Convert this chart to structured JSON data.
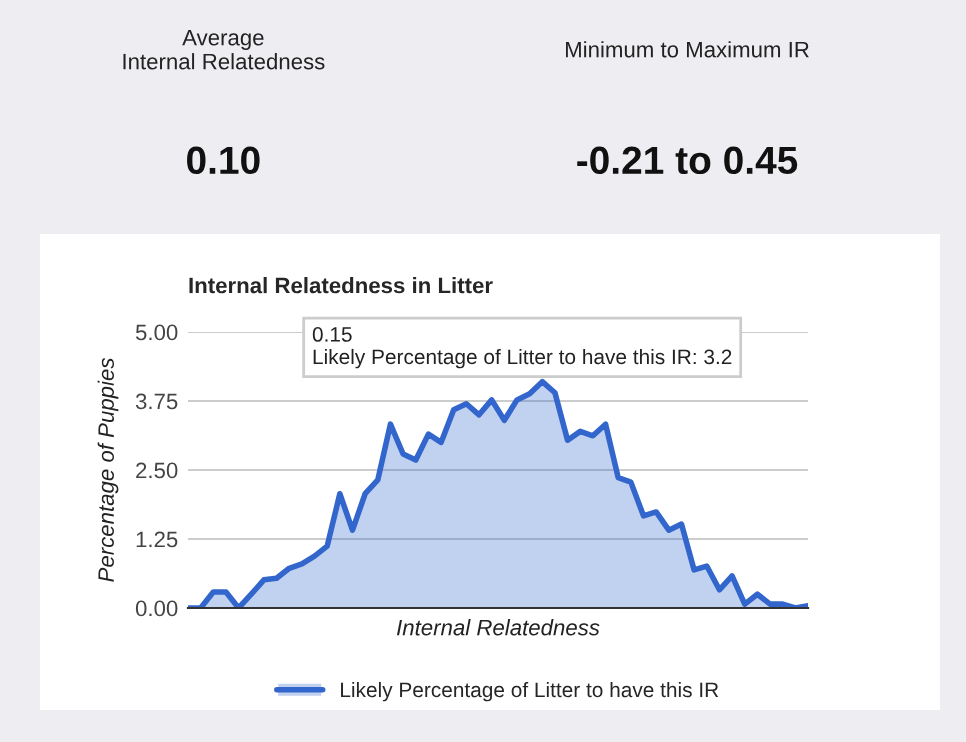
{
  "chart_data": [
    {
      "type": "other",
      "annotations": [
        "Average\nInternal Relatedness",
        "0.10",
        "Minimum to Maximum IR",
        "-0.21 to 0.45"
      ]
    },
    {
      "type": "area",
      "title": "Internal Relatedness in Litter",
      "xlabel": "Internal Relatedness",
      "ylabel": "Percentage of Puppies",
      "categories": [
        null,
        null,
        null,
        null,
        null,
        null,
        null,
        null,
        null,
        null,
        null,
        null,
        null,
        null,
        null,
        null,
        null,
        null,
        null,
        null,
        null,
        null,
        null,
        null,
        null,
        null,
        null,
        null,
        null,
        null,
        null,
        null,
        null,
        null,
        null,
        null,
        null,
        null,
        null,
        null,
        null,
        null,
        null,
        null,
        null,
        null,
        null,
        null,
        null,
        null
      ],
      "series": [
        {
          "name": "Likely Percentage of Litter to have this IR",
          "color": "#3366cc",
          "values": [
            0,
            0,
            0.29,
            0.29,
            0,
            0.25,
            0.51,
            0.54,
            0.72,
            0.8,
            0.94,
            1.12,
            2.07,
            1.41,
            2.07,
            2.32,
            3.33,
            2.79,
            2.68,
            3.15,
            3.0,
            3.59,
            3.7,
            3.5,
            3.77,
            3.4,
            3.77,
            3.88,
            4.1,
            3.9,
            3.04,
            3.2,
            3.12,
            3.33,
            2.36,
            2.28,
            1.67,
            1.74,
            1.41,
            1.52,
            0.69,
            0.76,
            0.33,
            0.58,
            0.07,
            0.25,
            0.07,
            0.07,
            0,
            0.04
          ]
        }
      ],
      "ylim": [
        0,
        5
      ],
      "yticks": [
        {
          "value": 0,
          "label": "0.00"
        },
        {
          "value": 1.25,
          "label": "1.25"
        },
        {
          "value": 2.5,
          "label": "2.50"
        },
        {
          "value": 3.75,
          "label": "3.75"
        },
        {
          "value": 5,
          "label": "5.00"
        }
      ],
      "tick_labels": "y",
      "grid": "y",
      "legend": "bottom",
      "line_style": "solid",
      "annotations": [
        "0.15\nLikely Percentage of Litter to have this IR: 3.2"
      ]
    }
  ]
}
